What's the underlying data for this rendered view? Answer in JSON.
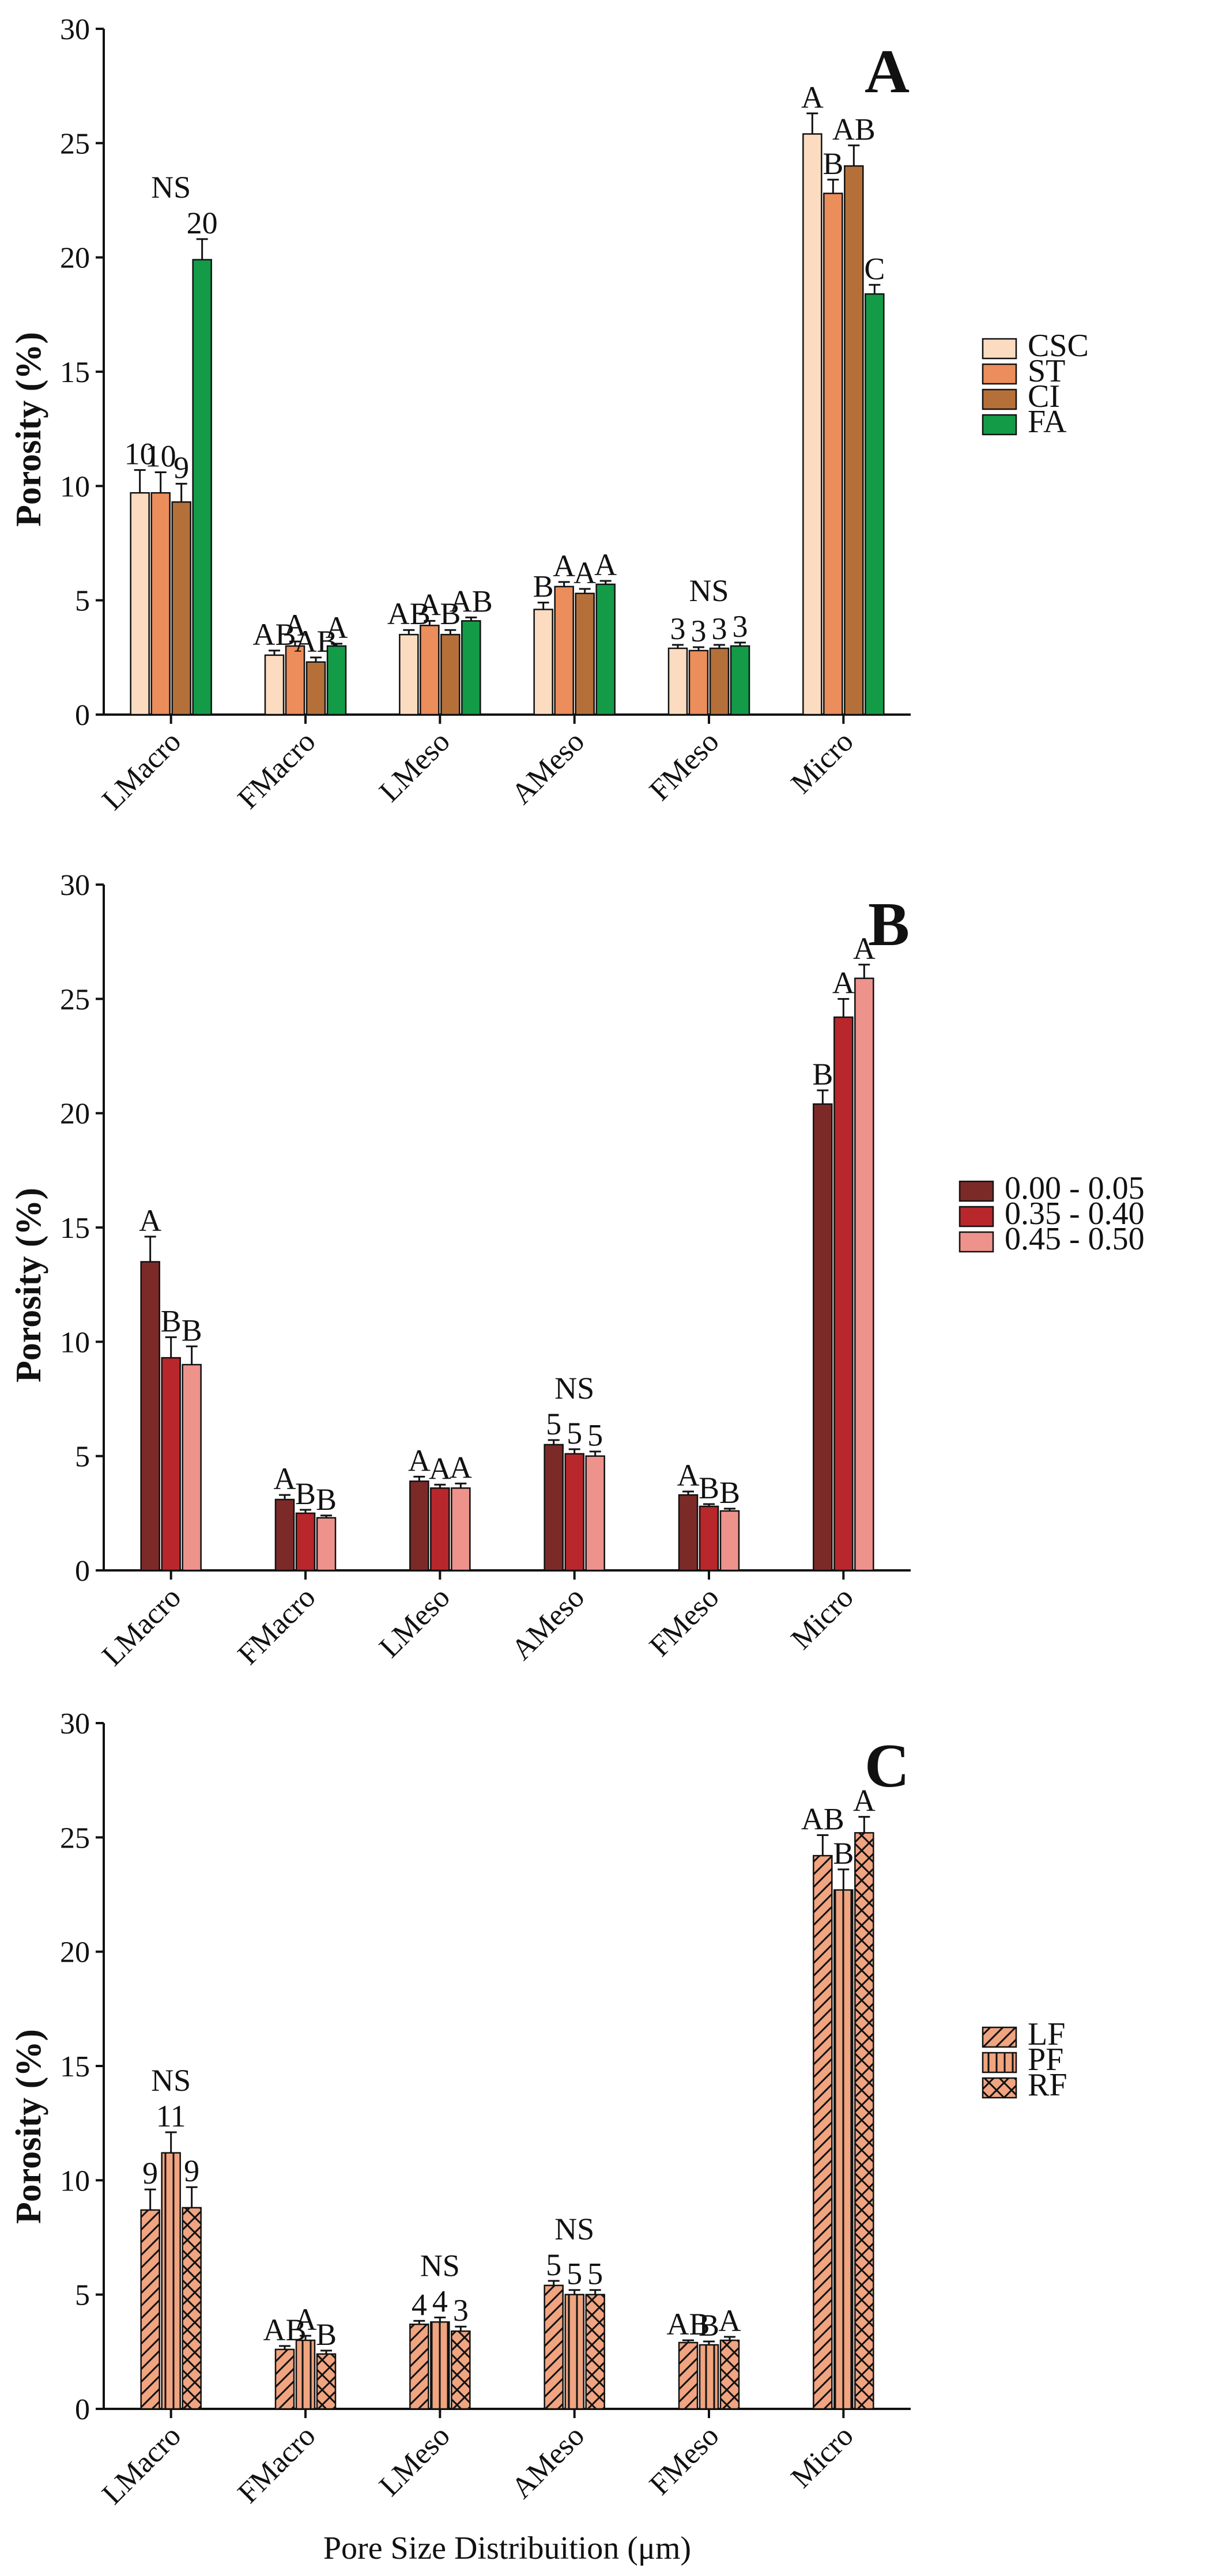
{
  "colors": {
    "CSC": "#fbdcc1",
    "ST": "#ec8d5c",
    "CI": "#b5703a",
    "FA": "#149b48",
    "0.00 - 0.05": "#7c2a28",
    "0.35 - 0.40": "#b7272b",
    "0.45 - 0.50": "#ee928c",
    "hatchFill": "#f0a480",
    "axis": "#111111"
  },
  "chart_data": [
    {
      "type": "bar",
      "panel": "A",
      "title": "",
      "xlabel": "",
      "ylabel": "Porosity (%)",
      "ylim": [
        0,
        30
      ],
      "yticks": [
        "0",
        "5",
        "10",
        "15",
        "20",
        "25",
        "30"
      ],
      "categories": [
        "LMacro",
        "FMacro",
        "LMeso",
        "AMeso",
        "FMeso",
        "Micro"
      ],
      "legend_position": "right",
      "series": [
        {
          "name": "CSC",
          "pattern": "solid",
          "values": [
            9.7,
            2.6,
            3.5,
            4.6,
            2.9,
            25.4
          ],
          "errors": [
            1.0,
            0.2,
            0.2,
            0.3,
            0.15,
            0.9
          ]
        },
        {
          "name": "ST",
          "pattern": "solid",
          "values": [
            9.7,
            3.0,
            3.9,
            5.6,
            2.8,
            22.8
          ],
          "errors": [
            0.9,
            0.2,
            0.2,
            0.2,
            0.15,
            0.6
          ]
        },
        {
          "name": "CI",
          "pattern": "solid",
          "values": [
            9.3,
            2.3,
            3.5,
            5.3,
            2.9,
            24.0
          ],
          "errors": [
            0.8,
            0.2,
            0.2,
            0.2,
            0.15,
            0.9
          ]
        },
        {
          "name": "FA",
          "pattern": "solid",
          "values": [
            19.9,
            3.0,
            4.1,
            5.7,
            3.0,
            18.4
          ],
          "errors": [
            0.9,
            0.1,
            0.15,
            0.15,
            0.15,
            0.4
          ]
        }
      ],
      "group_annotations": [
        "NS",
        "",
        "",
        "",
        "NS",
        ""
      ],
      "bar_labels": [
        [
          "10",
          "10",
          "9",
          "20"
        ],
        [
          "AB",
          "A",
          "AB",
          "A"
        ],
        [
          "AB",
          "A",
          "B",
          "AB"
        ],
        [
          "B",
          "A",
          "A",
          "A"
        ],
        [
          "3",
          "3",
          "3",
          "3"
        ],
        [
          "A",
          "B",
          "AB",
          "C"
        ]
      ]
    },
    {
      "type": "bar",
      "panel": "B",
      "title": "",
      "xlabel": "",
      "ylabel": "Porosity (%)",
      "ylim": [
        0,
        30
      ],
      "yticks": [
        "0",
        "5",
        "10",
        "15",
        "20",
        "25",
        "30"
      ],
      "categories": [
        "LMacro",
        "FMacro",
        "LMeso",
        "AMeso",
        "FMeso",
        "Micro"
      ],
      "legend_position": "right",
      "series": [
        {
          "name": "0.00 - 0.05",
          "pattern": "solid",
          "values": [
            13.5,
            3.1,
            3.9,
            5.5,
            3.3,
            20.4
          ],
          "errors": [
            1.1,
            0.2,
            0.2,
            0.2,
            0.15,
            0.6
          ]
        },
        {
          "name": "0.35 - 0.40",
          "pattern": "solid",
          "values": [
            9.3,
            2.5,
            3.6,
            5.1,
            2.8,
            24.2
          ],
          "errors": [
            0.9,
            0.15,
            0.15,
            0.2,
            0.1,
            0.8
          ]
        },
        {
          "name": "0.45 - 0.50",
          "pattern": "solid",
          "values": [
            9.0,
            2.3,
            3.6,
            5.0,
            2.6,
            25.9
          ],
          "errors": [
            0.8,
            0.1,
            0.2,
            0.2,
            0.1,
            0.6
          ]
        }
      ],
      "group_annotations": [
        "",
        "",
        "",
        "NS",
        "",
        ""
      ],
      "bar_labels": [
        [
          "A",
          "B",
          "B"
        ],
        [
          "A",
          "B",
          "B"
        ],
        [
          "A",
          "A",
          "A"
        ],
        [
          "5",
          "5",
          "5"
        ],
        [
          "A",
          "B",
          "B"
        ],
        [
          "B",
          "A",
          "A"
        ]
      ]
    },
    {
      "type": "bar",
      "panel": "C",
      "title": "",
      "xlabel": "Pore Size Distribuition (μm)",
      "ylabel": "Porosity (%)",
      "ylim": [
        0,
        30
      ],
      "yticks": [
        "0",
        "5",
        "10",
        "15",
        "20",
        "25",
        "30"
      ],
      "categories": [
        "LMacro",
        "FMacro",
        "LMeso",
        "AMeso",
        "FMeso",
        "Micro"
      ],
      "legend_position": "right",
      "series": [
        {
          "name": "LF",
          "pattern": "diagonal",
          "values": [
            8.7,
            2.6,
            3.7,
            5.4,
            2.9,
            24.2
          ],
          "errors": [
            0.9,
            0.15,
            0.15,
            0.2,
            0.1,
            0.9
          ]
        },
        {
          "name": "PF",
          "pattern": "vertical",
          "values": [
            11.2,
            3.0,
            3.8,
            5.0,
            2.8,
            22.7
          ],
          "errors": [
            0.9,
            0.2,
            0.2,
            0.2,
            0.15,
            0.9
          ]
        },
        {
          "name": "RF",
          "pattern": "crosshatch",
          "values": [
            8.8,
            2.4,
            3.4,
            5.0,
            3.0,
            25.2
          ],
          "errors": [
            0.9,
            0.15,
            0.2,
            0.2,
            0.15,
            0.7
          ]
        }
      ],
      "group_annotations": [
        "NS",
        "",
        "NS",
        "NS",
        "",
        ""
      ],
      "bar_labels": [
        [
          "9",
          "11",
          "9"
        ],
        [
          "AB",
          "A",
          "B"
        ],
        [
          "4",
          "4",
          "3"
        ],
        [
          "5",
          "5",
          "5"
        ],
        [
          "AB",
          "B",
          "A"
        ],
        [
          "AB",
          "B",
          "A"
        ]
      ]
    }
  ]
}
